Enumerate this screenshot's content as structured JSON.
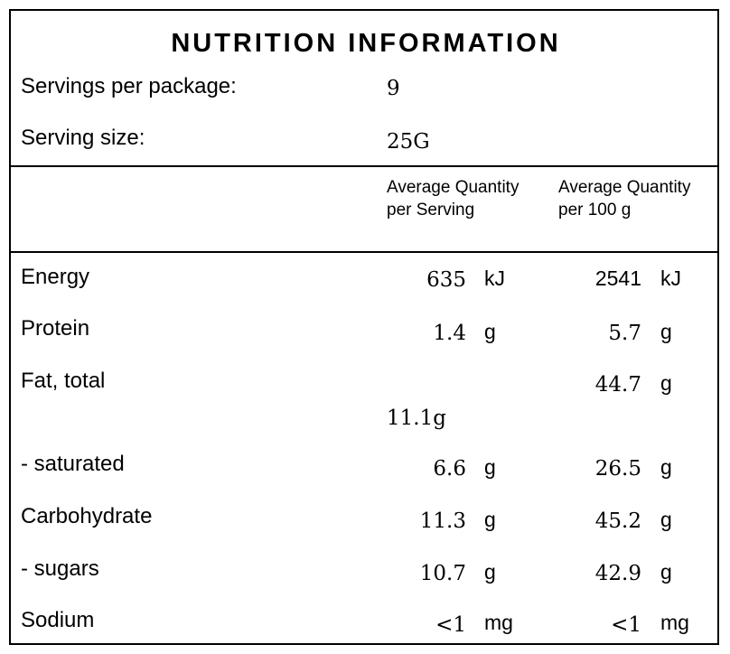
{
  "title": "NUTRITION INFORMATION",
  "servings": {
    "per_package_label": "Servings per package:",
    "per_package_value": "9",
    "size_label": "Serving size:",
    "size_value": "25G"
  },
  "columns": {
    "per_serving": "Average Quantity per Serving",
    "per_100g": "Average Quantity per 100 g"
  },
  "rows": [
    {
      "label": "Energy",
      "serving": "635",
      "serving_unit": "kJ",
      "per100": "2541",
      "per100_unit": "kJ"
    },
    {
      "label": "Protein",
      "serving": "1.4",
      "serving_unit": "g",
      "per100": "5.7",
      "per100_unit": "g"
    },
    {
      "label": "Fat, total",
      "serving": "11.1g",
      "serving_unit": "",
      "per100": "44.7",
      "per100_unit": "g"
    },
    {
      "label": "- saturated",
      "serving": "6.6",
      "serving_unit": "g",
      "per100": "26.5",
      "per100_unit": "g"
    },
    {
      "label": "Carbohydrate",
      "serving": "11.3",
      "serving_unit": "g",
      "per100": "45.2",
      "per100_unit": "g"
    },
    {
      "label": "- sugars",
      "serving": "10.7",
      "serving_unit": "g",
      "per100": "42.9",
      "per100_unit": "g"
    },
    {
      "label": "Sodium",
      "serving": "<1",
      "serving_unit": "mg",
      "per100": "<1",
      "per100_unit": "mg"
    }
  ]
}
